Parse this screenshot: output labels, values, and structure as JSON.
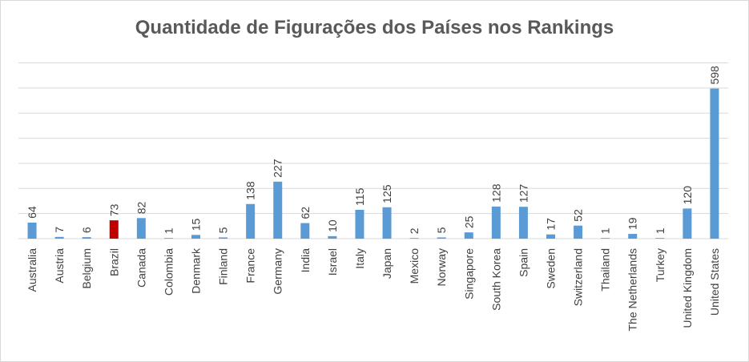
{
  "chart_data": {
    "type": "bar",
    "title": "Quantidade de Figurações dos Países nos Rankings",
    "xlabel": "",
    "ylabel": "",
    "ylim": [
      0,
      700
    ],
    "grid": true,
    "legend": "none",
    "categories": [
      "Australia",
      "Austria",
      "Belgium",
      "Brazil",
      "Canada",
      "Colombia",
      "Denmark",
      "Finland",
      "France",
      "Germany",
      "India",
      "Israel",
      "Italy",
      "Japan",
      "Mexico",
      "Norway",
      "Singapore",
      "South Korea",
      "Spain",
      "Sweden",
      "Switzerland",
      "Thailand",
      "The Netherlands",
      "Turkey",
      "United Kingdom",
      "United States"
    ],
    "values": [
      64,
      7,
      6,
      73,
      82,
      1,
      15,
      5,
      138,
      227,
      62,
      10,
      115,
      125,
      2,
      5,
      25,
      128,
      127,
      17,
      52,
      1,
      19,
      1,
      120,
      598
    ],
    "colors": {
      "default": "#5b9bd5",
      "highlight": "#c00000",
      "grid": "#d9d9d9"
    },
    "highlight_category": "Brazil"
  }
}
